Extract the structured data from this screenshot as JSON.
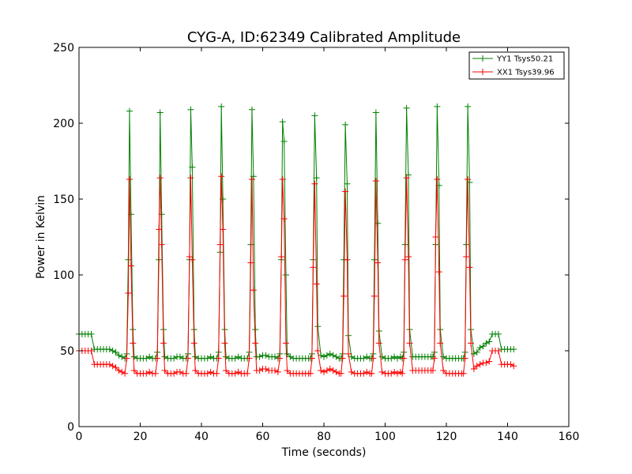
{
  "chart_data": {
    "type": "line",
    "title": "CYG-A, ID:62349 Calibrated Amplitude",
    "xlabel": "Time (seconds)",
    "ylabel": "Power in Kelvin",
    "xlim": [
      0,
      160
    ],
    "ylim": [
      0,
      250
    ],
    "xticks": [
      0,
      20,
      40,
      60,
      80,
      100,
      120,
      140,
      160
    ],
    "yticks": [
      0,
      50,
      100,
      150,
      200,
      250
    ],
    "grid": false,
    "legend_position": "top-right",
    "marker": "plus",
    "series": [
      {
        "name": "YY1 Tsys50.21",
        "color": "#008000",
        "x": [
          0,
          1,
          2,
          3,
          4,
          5,
          6,
          7,
          8,
          9,
          10,
          11,
          12,
          13,
          14,
          15,
          15.6,
          16.1,
          16.5,
          17,
          17.6,
          18,
          19,
          20,
          21,
          22,
          23,
          24,
          25,
          25.6,
          26.1,
          26.5,
          27,
          27.6,
          28,
          29,
          30,
          31,
          32,
          33,
          34,
          35,
          35.6,
          36.1,
          36.5,
          37,
          37.6,
          38,
          39,
          40,
          41,
          42,
          43,
          44,
          45,
          45.6,
          46.1,
          46.5,
          47,
          47.6,
          48,
          49,
          50,
          51,
          52,
          53,
          54,
          55,
          55.6,
          56.1,
          56.5,
          57,
          57.6,
          58,
          59,
          60,
          61,
          62,
          63,
          64,
          65,
          65.6,
          66.1,
          66.5,
          67,
          67.6,
          68,
          69,
          70,
          71,
          72,
          73,
          74,
          75,
          75.6,
          76.1,
          76.5,
          77,
          77.6,
          78,
          79,
          80,
          81,
          82,
          83,
          84,
          85,
          85.6,
          86.1,
          86.5,
          87,
          87.6,
          88,
          89,
          90,
          91,
          92,
          93,
          94,
          95,
          95.6,
          96.1,
          96.5,
          97,
          97.6,
          98,
          99,
          100,
          101,
          102,
          103,
          104,
          105,
          105.6,
          106.1,
          106.5,
          107,
          107.6,
          108,
          109,
          110,
          111,
          112,
          113,
          114,
          115,
          115.6,
          116.1,
          116.5,
          117,
          117.6,
          118,
          119,
          120,
          121,
          122,
          123,
          124,
          125,
          125.6,
          126.1,
          126.5,
          127,
          127.6,
          128,
          129,
          130,
          131,
          132,
          133,
          134,
          135,
          136,
          137,
          138,
          139,
          140,
          141,
          142
        ],
        "y": [
          61,
          61,
          61,
          61,
          61,
          51,
          51,
          51,
          51,
          51,
          51,
          50,
          49,
          47,
          46,
          45,
          48,
          110,
          208,
          140,
          64,
          46,
          45,
          45,
          45,
          45,
          46,
          45,
          45,
          49,
          110,
          207,
          140,
          64,
          46,
          45,
          45,
          45,
          46,
          46,
          45,
          45,
          48,
          110,
          209,
          171,
          64,
          46,
          45,
          45,
          45,
          45,
          46,
          45,
          45,
          49,
          115,
          211,
          150,
          64,
          46,
          45,
          45,
          45,
          46,
          45,
          45,
          45,
          49,
          120,
          209,
          165,
          64,
          46,
          46,
          47,
          47,
          46,
          46,
          46,
          45,
          48,
          110,
          201,
          188,
          100,
          48,
          46,
          45,
          45,
          45,
          45,
          45,
          45,
          45,
          48,
          110,
          205,
          164,
          66,
          47,
          46,
          47,
          48,
          47,
          46,
          45,
          45,
          48,
          110,
          199,
          160,
          60,
          46,
          45,
          45,
          45,
          45,
          46,
          45,
          45,
          48,
          110,
          207,
          134,
          63,
          46,
          45,
          45,
          45,
          46,
          45,
          46,
          45,
          49,
          120,
          210,
          166,
          64,
          46,
          46,
          46,
          46,
          46,
          46,
          46,
          46,
          49,
          120,
          211,
          159,
          64,
          46,
          45,
          45,
          45,
          45,
          45,
          45,
          45,
          49,
          120,
          211,
          161,
          64,
          48,
          49,
          52,
          53,
          55,
          56,
          61,
          61,
          61,
          51,
          51,
          51,
          51,
          51
        ]
      },
      {
        "name": "XX1 Tsys39.96",
        "color": "#ff0000",
        "x": [
          0,
          1,
          2,
          3,
          4,
          5,
          6,
          7,
          8,
          9,
          10,
          11,
          12,
          13,
          14,
          15,
          15.6,
          16.1,
          16.5,
          17,
          17.6,
          18,
          19,
          20,
          21,
          22,
          23,
          24,
          25,
          25.6,
          26.1,
          26.5,
          27,
          27.6,
          28,
          29,
          30,
          31,
          32,
          33,
          34,
          35,
          35.6,
          36.1,
          36.5,
          37,
          37.6,
          38,
          39,
          40,
          41,
          42,
          43,
          44,
          45,
          45.6,
          46.1,
          46.5,
          47,
          47.6,
          48,
          49,
          50,
          51,
          52,
          53,
          54,
          55,
          55.6,
          56.1,
          56.5,
          57,
          57.6,
          58,
          59,
          60,
          61,
          62,
          63,
          64,
          65,
          65.6,
          66.1,
          66.5,
          67,
          67.6,
          68,
          69,
          70,
          71,
          72,
          73,
          74,
          75,
          75.6,
          76.1,
          76.5,
          77,
          77.6,
          78,
          79,
          80,
          81,
          82,
          83,
          84,
          85,
          85.6,
          86.1,
          86.5,
          87,
          87.6,
          88,
          89,
          90,
          91,
          92,
          93,
          94,
          95,
          95.6,
          96.1,
          96.5,
          97,
          97.6,
          98,
          99,
          100,
          101,
          102,
          103,
          104,
          105,
          105.6,
          106.1,
          106.5,
          107,
          107.6,
          108,
          109,
          110,
          111,
          112,
          113,
          114,
          115,
          115.6,
          116.1,
          116.5,
          117,
          117.6,
          118,
          119,
          120,
          121,
          122,
          123,
          124,
          125,
          125.6,
          126.1,
          126.5,
          127,
          127.6,
          128,
          129,
          130,
          131,
          132,
          133,
          134,
          135,
          136,
          137,
          138,
          139,
          140,
          141,
          142
        ],
        "y": [
          50,
          50,
          50,
          50,
          50,
          41,
          41,
          41,
          41,
          41,
          41,
          40,
          39,
          37,
          36,
          35,
          45,
          88,
          163,
          106,
          55,
          37,
          35,
          35,
          35,
          35,
          36,
          35,
          35,
          45,
          130,
          164,
          120,
          55,
          37,
          35,
          35,
          35,
          36,
          36,
          35,
          35,
          45,
          112,
          164,
          110,
          55,
          37,
          35,
          35,
          35,
          35,
          36,
          35,
          35,
          45,
          120,
          165,
          130,
          55,
          37,
          35,
          35,
          35,
          36,
          35,
          35,
          35,
          45,
          108,
          163,
          90,
          55,
          37,
          37,
          38,
          38,
          37,
          37,
          37,
          36,
          45,
          112,
          163,
          137,
          55,
          37,
          35,
          35,
          35,
          35,
          35,
          35,
          35,
          35,
          45,
          105,
          160,
          94,
          50,
          37,
          36,
          37,
          38,
          37,
          36,
          35,
          35,
          45,
          86,
          155,
          110,
          48,
          36,
          35,
          35,
          35,
          35,
          36,
          35,
          35,
          45,
          86,
          162,
          108,
          55,
          36,
          35,
          35,
          35,
          36,
          35,
          36,
          35,
          45,
          110,
          164,
          112,
          55,
          37,
          37,
          37,
          37,
          37,
          37,
          37,
          37,
          45,
          125,
          163,
          102,
          55,
          37,
          35,
          35,
          35,
          35,
          35,
          35,
          35,
          45,
          112,
          163,
          105,
          55,
          38,
          40,
          41,
          42,
          42,
          43,
          50,
          50,
          50,
          41,
          41,
          41,
          41,
          40
        ]
      }
    ]
  }
}
